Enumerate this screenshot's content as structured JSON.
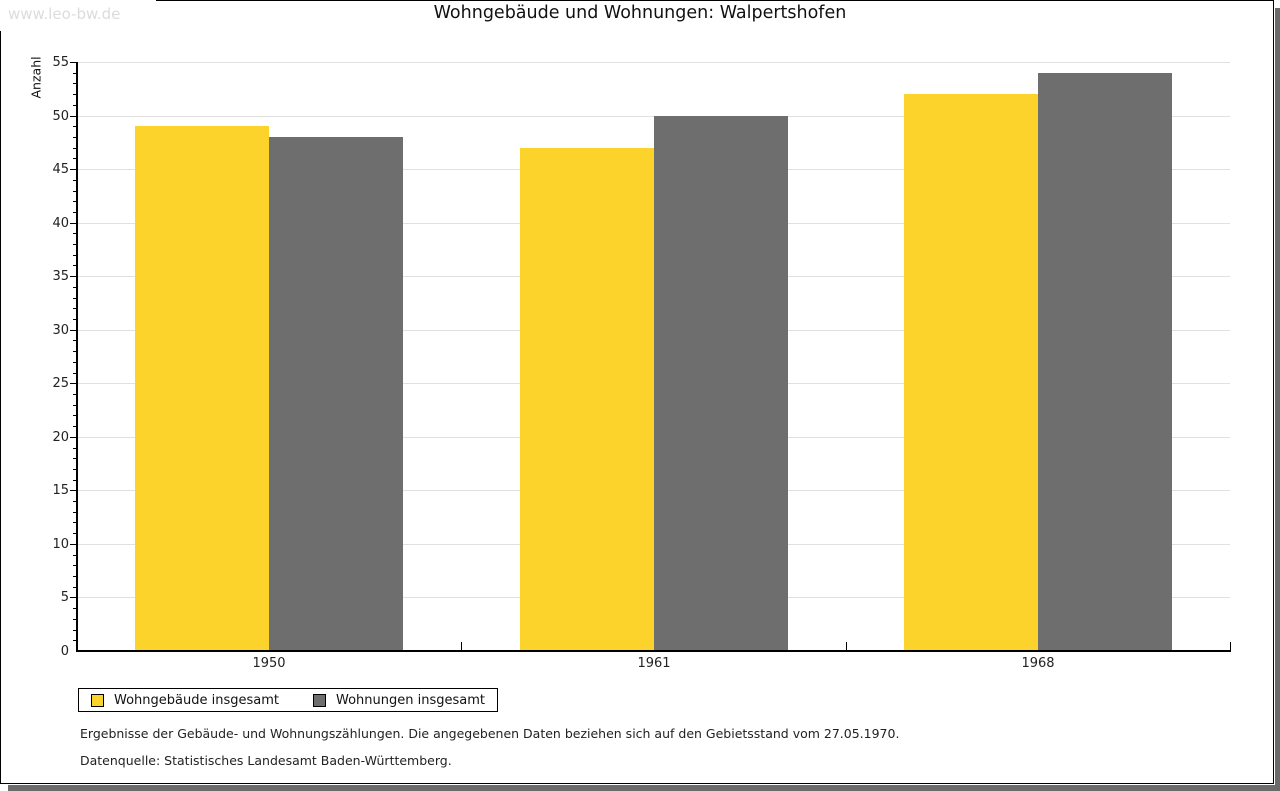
{
  "watermark": "www.leo-bw.de",
  "title": "Wohngebäude und Wohnungen: Walpertshofen",
  "chart_data": {
    "type": "bar",
    "title": "Wohngebäude und Wohnungen: Walpertshofen",
    "categories": [
      "1950",
      "1961",
      "1968"
    ],
    "series": [
      {
        "name": "Wohngebäude insgesamt",
        "color": "#fcd32b",
        "values": [
          49,
          47,
          52
        ]
      },
      {
        "name": "Wohnungen insgesamt",
        "color": "#6e6e6e",
        "values": [
          48,
          50,
          54
        ]
      }
    ],
    "xlabel": "",
    "ylabel": "Anzahl",
    "ylim": [
      0,
      55
    ],
    "ytick_step": 5,
    "yminor_step": 1,
    "grid": "horizontal major",
    "gridline_color": "#e0e0e0",
    "legend_position": "bottom-left"
  },
  "footnotes": [
    "Ergebnisse der Gebäude- und Wohnungszählungen. Die angegebenen Daten beziehen sich auf den Gebietsstand vom 27.05.1970.",
    "Datenquelle: Statistisches Landesamt Baden-Württemberg."
  ]
}
